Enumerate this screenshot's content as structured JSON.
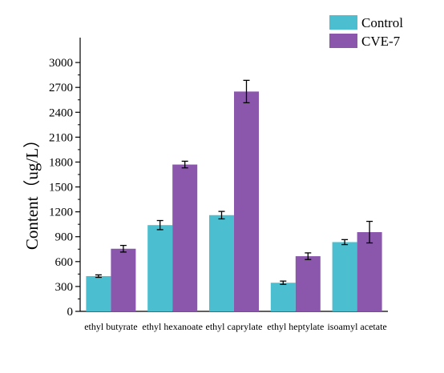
{
  "chart_data": {
    "type": "bar",
    "title": "",
    "xlabel": "",
    "ylabel": "Content（ug/L）",
    "ylim": [
      0,
      3300
    ],
    "yticks": [
      0,
      300,
      600,
      900,
      1200,
      1500,
      1800,
      2100,
      2400,
      2700,
      3000
    ],
    "grid": false,
    "legend_position": "top-right",
    "categories": [
      "ethyl butyrate",
      "ethyl hexanoate",
      "ethyl caprylate",
      "ethyl heptylate",
      "isoamyl acetate"
    ],
    "series": [
      {
        "name": "Control",
        "color": "#4bbfcf",
        "values": [
          425,
          1040,
          1160,
          345,
          835
        ],
        "errors": [
          15,
          55,
          45,
          20,
          30
        ]
      },
      {
        "name": "CVE-7",
        "color": "#8a57ad",
        "values": [
          755,
          1770,
          2650,
          665,
          955
        ],
        "errors": [
          40,
          40,
          135,
          40,
          130
        ]
      }
    ]
  }
}
